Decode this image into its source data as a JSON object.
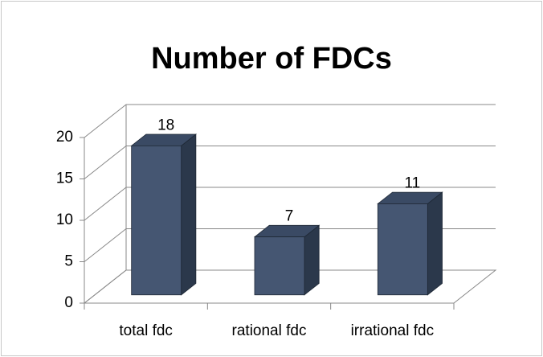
{
  "chart_data": {
    "type": "bar3d",
    "title": "Number of FDCs",
    "categories": [
      "total fdc",
      "rational fdc",
      "irrational fdc"
    ],
    "values": [
      18,
      7,
      11
    ],
    "color": "#455672",
    "ylim": [
      0,
      20
    ],
    "yticks": [
      0,
      5,
      10,
      15,
      20
    ],
    "grid": true
  }
}
